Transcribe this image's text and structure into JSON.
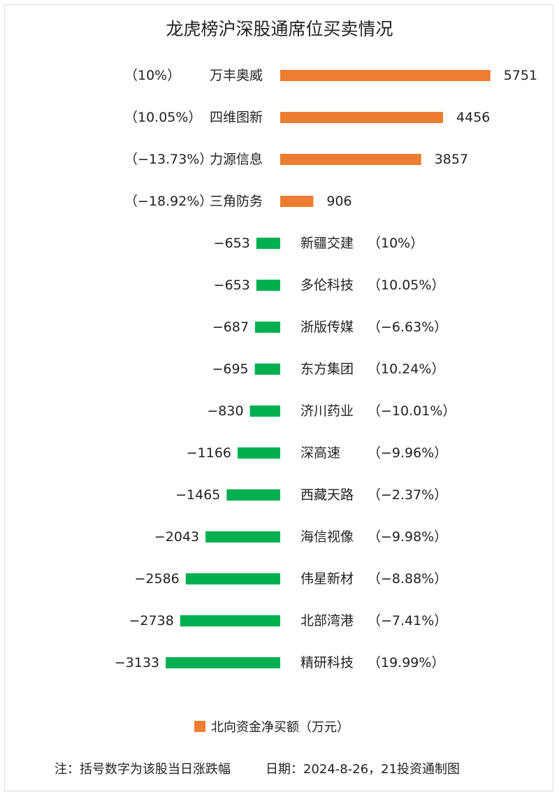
{
  "title": "龙虎榜沪深股通席位买卖情况",
  "legend": "北向资金净买额（万元）",
  "footer_note": "注：括号数字为该股当日涨跌幅",
  "footer_source": "日期：2024-8-26，21投资通制图",
  "colors": {
    "positive": "#ed7d31",
    "negative": "#00b050"
  },
  "chart_data": {
    "type": "bar",
    "orientation": "horizontal",
    "series_name": "北向资金净买额（万元）",
    "categories": [
      "万丰奥威",
      "四维图新",
      "力源信息",
      "三角防务",
      "新疆交建",
      "多伦科技",
      "浙版传媒",
      "东方集团",
      "济川药业",
      "深高速",
      "西藏天路",
      "海信视像",
      "伟星新材",
      "北部湾港",
      "精研科技"
    ],
    "values": [
      5751,
      4456,
      3857,
      906,
      -653,
      -653,
      -687,
      -695,
      -830,
      -1166,
      -1465,
      -2043,
      -2586,
      -2738,
      -3133
    ],
    "value_labels": [
      "5751",
      "4456",
      "3857",
      "906",
      "−653",
      "−653",
      "−687",
      "−695",
      "−830",
      "−1166",
      "−1465",
      "−2043",
      "−2586",
      "−2738",
      "−3133"
    ],
    "change_labels": [
      "（10%）",
      "（10.05%）",
      "（−13.73%）",
      "（−18.92%）",
      "（10%）",
      "（10.05%）",
      "（−6.63%）",
      "（10.24%）",
      "（−10.01%）",
      "（−9.96%）",
      "（−2.37%）",
      "（−9.98%）",
      "（−8.88%）",
      "（−7.41%）",
      "（19.99%）"
    ]
  }
}
